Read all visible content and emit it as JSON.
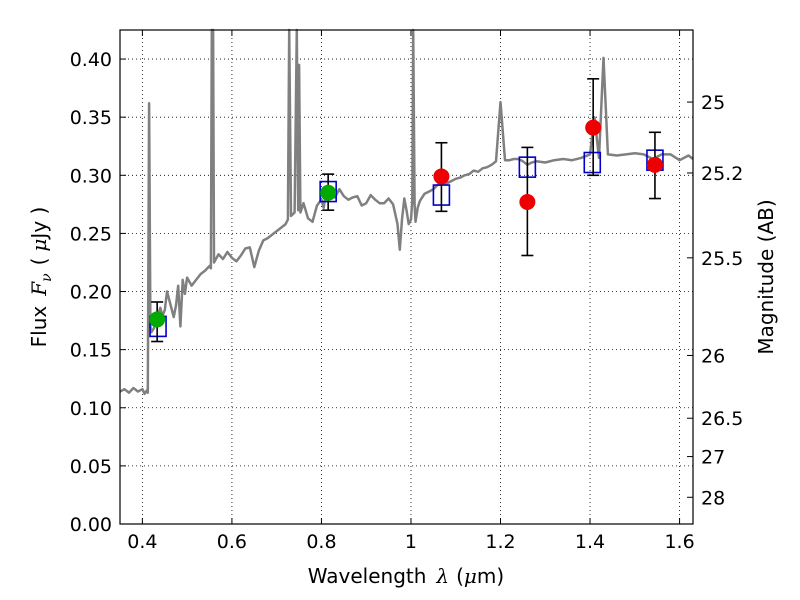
{
  "chart_data": {
    "type": "scatter",
    "xlabel_parts": {
      "text": "Wavelength",
      "symbol": "λ",
      "unit_open": "(",
      "unit_mu": "μ",
      "unit_rest": "m)"
    },
    "ylabel_parts": {
      "text": "Flux",
      "symbol": "F",
      "subscript": "ν",
      "unit_open": "(",
      "unit_mu": "μ",
      "unit_rest": "Jy )"
    },
    "y2label": "Magnitude (AB)",
    "xlim": [
      0.35,
      1.63
    ],
    "ylim": [
      0.0,
      0.425
    ],
    "grid": true,
    "xticks": [
      0.4,
      0.6,
      0.8,
      1.0,
      1.2,
      1.4,
      1.6
    ],
    "xtick_labels": [
      "0.4",
      "0.6",
      "0.8",
      "1",
      "1.2",
      "1.4",
      "1.6"
    ],
    "yticks": [
      0.0,
      0.05,
      0.1,
      0.15,
      0.2,
      0.25,
      0.3,
      0.35,
      0.4
    ],
    "ytick_labels": [
      "0.00",
      "0.05",
      "0.10",
      "0.15",
      "0.20",
      "0.25",
      "0.30",
      "0.35",
      "0.40"
    ],
    "right_axis_ticks": [
      {
        "label": "25",
        "flux": 0.363
      },
      {
        "label": "25.2",
        "flux": 0.302
      },
      {
        "label": "25.5",
        "flux": 0.229
      },
      {
        "label": "26",
        "flux": 0.145
      },
      {
        "label": "26.5",
        "flux": 0.091
      },
      {
        "label": "27",
        "flux": 0.058
      },
      {
        "label": "28",
        "flux": 0.023
      }
    ],
    "colors": {
      "spectrum": "#808080",
      "model": "#0000cc",
      "obs_green": "#00aa00",
      "obs_red": "#ee0000",
      "errorbar": "#000000"
    },
    "spectrum": [
      [
        0.35,
        0.114
      ],
      [
        0.36,
        0.116
      ],
      [
        0.37,
        0.113
      ],
      [
        0.38,
        0.117
      ],
      [
        0.39,
        0.114
      ],
      [
        0.4,
        0.116
      ],
      [
        0.405,
        0.112
      ],
      [
        0.41,
        0.115
      ],
      [
        0.412,
        0.113
      ],
      [
        0.415,
        0.362
      ],
      [
        0.418,
        0.17
      ],
      [
        0.42,
        0.165
      ],
      [
        0.425,
        0.168
      ],
      [
        0.43,
        0.172
      ],
      [
        0.435,
        0.18
      ],
      [
        0.44,
        0.186
      ],
      [
        0.445,
        0.179
      ],
      [
        0.45,
        0.184
      ],
      [
        0.455,
        0.2
      ],
      [
        0.46,
        0.193
      ],
      [
        0.47,
        0.178
      ],
      [
        0.475,
        0.188
      ],
      [
        0.48,
        0.205
      ],
      [
        0.485,
        0.17
      ],
      [
        0.49,
        0.21
      ],
      [
        0.495,
        0.198
      ],
      [
        0.5,
        0.212
      ],
      [
        0.51,
        0.205
      ],
      [
        0.52,
        0.21
      ],
      [
        0.53,
        0.215
      ],
      [
        0.54,
        0.218
      ],
      [
        0.55,
        0.222
      ],
      [
        0.553,
        0.22
      ],
      [
        0.555,
        0.425
      ],
      [
        0.558,
        0.425
      ],
      [
        0.56,
        0.225
      ],
      [
        0.57,
        0.232
      ],
      [
        0.58,
        0.228
      ],
      [
        0.59,
        0.234
      ],
      [
        0.6,
        0.229
      ],
      [
        0.61,
        0.226
      ],
      [
        0.62,
        0.231
      ],
      [
        0.63,
        0.237
      ],
      [
        0.64,
        0.238
      ],
      [
        0.65,
        0.221
      ],
      [
        0.66,
        0.235
      ],
      [
        0.67,
        0.244
      ],
      [
        0.68,
        0.246
      ],
      [
        0.69,
        0.249
      ],
      [
        0.7,
        0.252
      ],
      [
        0.71,
        0.255
      ],
      [
        0.72,
        0.258
      ],
      [
        0.725,
        0.262
      ],
      [
        0.728,
        0.425
      ],
      [
        0.732,
        0.265
      ],
      [
        0.74,
        0.268
      ],
      [
        0.745,
        0.425
      ],
      [
        0.748,
        0.27
      ],
      [
        0.75,
        0.395
      ],
      [
        0.753,
        0.268
      ],
      [
        0.76,
        0.276
      ],
      [
        0.77,
        0.263
      ],
      [
        0.78,
        0.26
      ],
      [
        0.79,
        0.274
      ],
      [
        0.8,
        0.279
      ],
      [
        0.805,
        0.272
      ],
      [
        0.81,
        0.285
      ],
      [
        0.815,
        0.279
      ],
      [
        0.82,
        0.282
      ],
      [
        0.83,
        0.281
      ],
      [
        0.84,
        0.288
      ],
      [
        0.85,
        0.282
      ],
      [
        0.86,
        0.279
      ],
      [
        0.87,
        0.281
      ],
      [
        0.88,
        0.282
      ],
      [
        0.89,
        0.274
      ],
      [
        0.9,
        0.276
      ],
      [
        0.91,
        0.283
      ],
      [
        0.92,
        0.279
      ],
      [
        0.93,
        0.276
      ],
      [
        0.94,
        0.276
      ],
      [
        0.95,
        0.28
      ],
      [
        0.96,
        0.275
      ],
      [
        0.97,
        0.258
      ],
      [
        0.975,
        0.236
      ],
      [
        0.98,
        0.262
      ],
      [
        0.985,
        0.28
      ],
      [
        0.99,
        0.27
      ],
      [
        0.995,
        0.258
      ],
      [
        1.0,
        0.262
      ],
      [
        1.003,
        0.278
      ],
      [
        1.005,
        0.425
      ],
      [
        1.008,
        0.275
      ],
      [
        1.01,
        0.26
      ],
      [
        1.015,
        0.272
      ],
      [
        1.02,
        0.278
      ],
      [
        1.03,
        0.284
      ],
      [
        1.04,
        0.286
      ],
      [
        1.05,
        0.288
      ],
      [
        1.06,
        0.292
      ],
      [
        1.07,
        0.292
      ],
      [
        1.08,
        0.293
      ],
      [
        1.09,
        0.295
      ],
      [
        1.1,
        0.297
      ],
      [
        1.11,
        0.298
      ],
      [
        1.12,
        0.3
      ],
      [
        1.13,
        0.301
      ],
      [
        1.14,
        0.304
      ],
      [
        1.15,
        0.303
      ],
      [
        1.16,
        0.306
      ],
      [
        1.17,
        0.307
      ],
      [
        1.18,
        0.309
      ],
      [
        1.19,
        0.312
      ],
      [
        1.2,
        0.363
      ],
      [
        1.21,
        0.313
      ],
      [
        1.22,
        0.313
      ],
      [
        1.23,
        0.314
      ],
      [
        1.24,
        0.314
      ],
      [
        1.25,
        0.312
      ],
      [
        1.26,
        0.309
      ],
      [
        1.27,
        0.311
      ],
      [
        1.28,
        0.312
      ],
      [
        1.3,
        0.311
      ],
      [
        1.32,
        0.313
      ],
      [
        1.34,
        0.314
      ],
      [
        1.36,
        0.313
      ],
      [
        1.38,
        0.315
      ],
      [
        1.4,
        0.318
      ],
      [
        1.41,
        0.35
      ],
      [
        1.42,
        0.315
      ],
      [
        1.43,
        0.401
      ],
      [
        1.44,
        0.318
      ],
      [
        1.46,
        0.317
      ],
      [
        1.48,
        0.318
      ],
      [
        1.5,
        0.319
      ],
      [
        1.52,
        0.318
      ],
      [
        1.54,
        0.314
      ],
      [
        1.56,
        0.318
      ],
      [
        1.58,
        0.318
      ],
      [
        1.6,
        0.313
      ],
      [
        1.62,
        0.317
      ],
      [
        1.63,
        0.314
      ]
    ],
    "model_points": [
      {
        "x": 0.435,
        "y": 0.17
      },
      {
        "x": 0.815,
        "y": 0.286
      },
      {
        "x": 1.068,
        "y": 0.283
      },
      {
        "x": 1.26,
        "y": 0.307
      },
      {
        "x": 1.405,
        "y": 0.311
      },
      {
        "x": 1.545,
        "y": 0.313
      }
    ],
    "observed_points": [
      {
        "x": 0.433,
        "y": 0.176,
        "yerr_low": 0.157,
        "yerr_high": 0.191,
        "color": "green"
      },
      {
        "x": 0.815,
        "y": 0.285,
        "yerr_low": 0.27,
        "yerr_high": 0.301,
        "color": "green"
      },
      {
        "x": 1.068,
        "y": 0.299,
        "yerr_low": 0.269,
        "yerr_high": 0.328,
        "color": "red"
      },
      {
        "x": 1.26,
        "y": 0.277,
        "yerr_low": 0.231,
        "yerr_high": 0.324,
        "color": "red"
      },
      {
        "x": 1.407,
        "y": 0.341,
        "yerr_low": 0.3,
        "yerr_high": 0.383,
        "color": "red"
      },
      {
        "x": 1.545,
        "y": 0.309,
        "yerr_low": 0.28,
        "yerr_high": 0.337,
        "color": "red"
      }
    ]
  }
}
